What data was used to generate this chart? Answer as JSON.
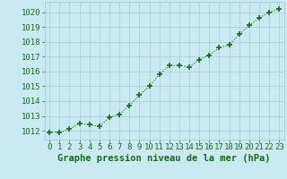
{
  "x": [
    0,
    1,
    2,
    3,
    4,
    5,
    6,
    7,
    8,
    9,
    10,
    11,
    12,
    13,
    14,
    15,
    16,
    17,
    18,
    19,
    20,
    21,
    22,
    23
  ],
  "y": [
    1011.9,
    1011.9,
    1012.1,
    1012.5,
    1012.4,
    1012.3,
    1012.9,
    1013.1,
    1013.7,
    1014.4,
    1015.0,
    1015.8,
    1016.4,
    1016.4,
    1016.3,
    1016.8,
    1017.1,
    1017.6,
    1017.8,
    1018.5,
    1019.1,
    1019.6,
    1020.0,
    1020.2
  ],
  "line_color": "#1a6b1a",
  "marker": "+",
  "marker_size": 4.0,
  "bg_color": "#c8eaf0",
  "grid_color": "#a8ccd8",
  "xlabel": "Graphe pression niveau de la mer (hPa)",
  "xlabel_color": "#1a6b1a",
  "xlabel_fontsize": 7.5,
  "tick_color": "#1a6b1a",
  "tick_fontsize": 6.5,
  "ytick_vals": [
    1012,
    1013,
    1014,
    1015,
    1016,
    1017,
    1018,
    1019,
    1020
  ],
  "ytick_labels": [
    "1012",
    "1013",
    "1014",
    "1015",
    "1016",
    "1017",
    "1018",
    "1019",
    "1020"
  ],
  "ylim": [
    1011.4,
    1020.7
  ],
  "xlim": [
    -0.5,
    23.5
  ]
}
